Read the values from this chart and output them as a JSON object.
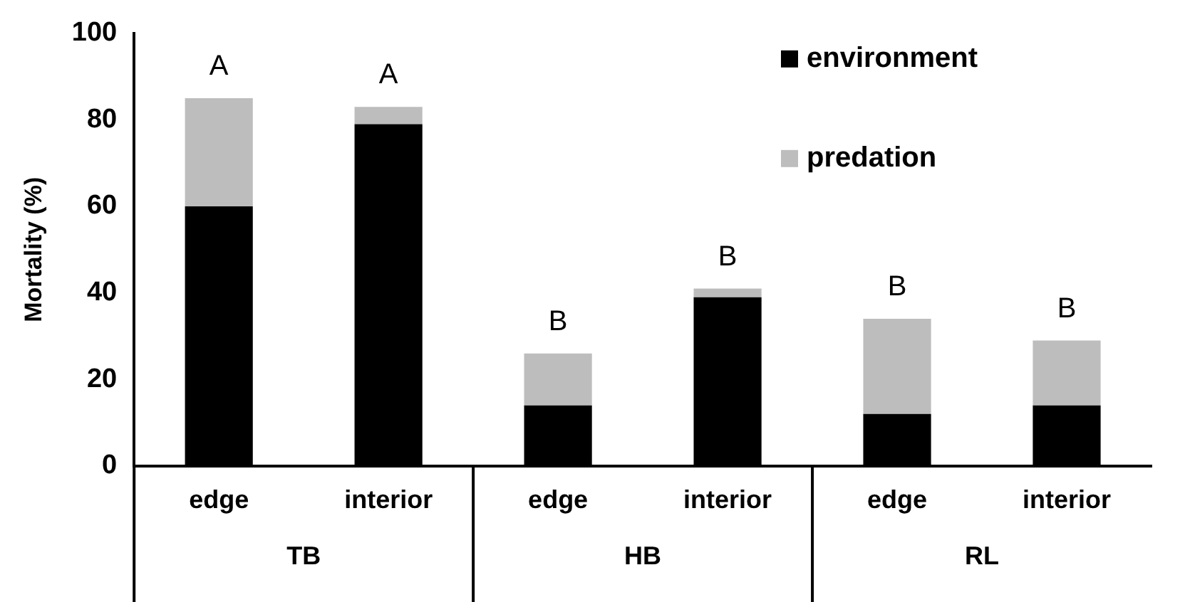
{
  "chart_data": {
    "type": "bar",
    "stacked": true,
    "ylabel": "Mortality (%)",
    "categories": [
      "edge",
      "interior",
      "edge",
      "interior",
      "edge",
      "interior"
    ],
    "series": [
      {
        "name": "environment",
        "color": "#000000",
        "values": [
          60,
          79,
          14,
          39,
          12,
          14
        ]
      },
      {
        "name": "predation",
        "color": "#bdbdbd",
        "values": [
          25,
          4,
          12,
          2,
          22,
          15
        ]
      }
    ],
    "ylim": [
      0,
      100
    ],
    "yticks": [
      0,
      20,
      40,
      60,
      80,
      100
    ],
    "grid": false,
    "legend": "top right",
    "annotations": [
      {
        "text": "A",
        "y": 85
      },
      {
        "text": "A",
        "y": 83
      },
      {
        "text": "B",
        "y": 26
      },
      {
        "text": "B",
        "y": 41
      },
      {
        "text": "B",
        "y": 34
      },
      {
        "text": "B",
        "y": 29
      },
      "TB",
      "HB",
      "RL"
    ]
  }
}
